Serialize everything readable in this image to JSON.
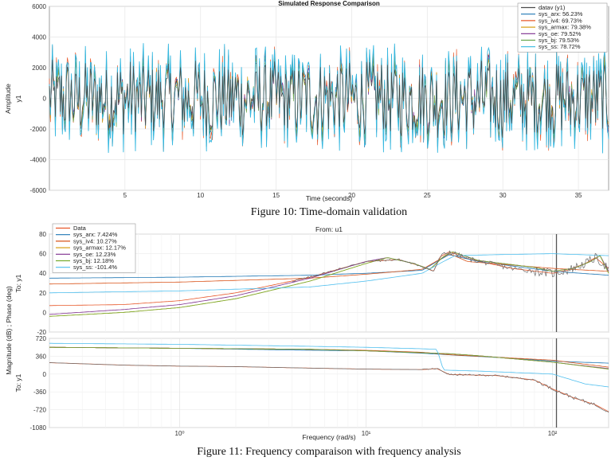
{
  "figure10": {
    "caption": "Figure 10: Time-domain validation",
    "chart_data": {
      "type": "line",
      "title": "Simulated Response Comparison",
      "xlabel": "Time (seconds)",
      "ylabel": "Amplitude",
      "ylabel_sub": "y1",
      "xlim": [
        0,
        37
      ],
      "ylim": [
        -6000,
        6000
      ],
      "xticks": [
        5,
        10,
        15,
        20,
        25,
        30,
        35
      ],
      "yticks": [
        -6000,
        -4000,
        -2000,
        0,
        2000,
        4000,
        6000
      ],
      "legend_position": "top-right",
      "series": [
        {
          "name": "datav (y1)",
          "color": "#4a4a4a"
        },
        {
          "name": "sys_arx: 56.23%",
          "color": "#1f77b4"
        },
        {
          "name": "sys_iv4: 69.73%",
          "color": "#e8582a"
        },
        {
          "name": "sys_armax: 79.38%",
          "color": "#d9a21b"
        },
        {
          "name": "sys_oe: 79.52%",
          "color": "#7b2d8e"
        },
        {
          "name": "sys_bj: 79.53%",
          "color": "#6aa84f"
        },
        {
          "name": "sys_ss: 78.72%",
          "color": "#35b8e0"
        }
      ]
    }
  },
  "figure11": {
    "caption": "Figure 11: Frequency comparaison with frequency analysis",
    "chart_data": {
      "type": "line",
      "subtitle": "From: u1",
      "xlabel": "Frequency  (rad/s)",
      "ylabel": "Magnitude (dB) ; Phase (deg)",
      "mag_side_label": "To: y1",
      "phase_side_label": "To: y1",
      "xscale": "log",
      "xlim": [
        0.2,
        200
      ],
      "xticks": [
        1,
        10,
        100
      ],
      "xtick_labels": [
        "10⁰",
        "10¹",
        "10²"
      ],
      "mag_ylim": [
        -20,
        80
      ],
      "mag_yticks": [
        -20,
        0,
        20,
        40,
        60,
        80
      ],
      "phase_ylim": [
        -1080,
        720
      ],
      "phase_yticks": [
        -1080,
        -720,
        -360,
        0,
        360,
        720
      ],
      "vertical_marker_x": 105,
      "legend_position": "top-left",
      "series": [
        {
          "name": "Data",
          "color": "#e8582a",
          "mag": [
            [
              0.2,
              7
            ],
            [
              0.5,
              8
            ],
            [
              1,
              12
            ],
            [
              2,
              20
            ],
            [
              5,
              36
            ],
            [
              10,
              52
            ],
            [
              15,
              54
            ],
            [
              20,
              47
            ],
            [
              23,
              42
            ],
            [
              25,
              57
            ],
            [
              28,
              62
            ],
            [
              35,
              55
            ],
            [
              60,
              45
            ],
            [
              100,
              40
            ],
            [
              120,
              43
            ],
            [
              150,
              50
            ],
            [
              170,
              56
            ],
            [
              200,
              45
            ]
          ],
          "phase": [
            [
              0.2,
              230
            ],
            [
              0.5,
              180
            ],
            [
              1,
              160
            ],
            [
              2,
              150
            ],
            [
              5,
              120
            ],
            [
              10,
              100
            ],
            [
              20,
              90
            ],
            [
              24,
              110
            ],
            [
              28,
              -10
            ],
            [
              50,
              -30
            ],
            [
              80,
              -120
            ],
            [
              100,
              -300
            ],
            [
              130,
              -480
            ],
            [
              170,
              -620
            ],
            [
              200,
              -760
            ]
          ]
        },
        {
          "name": "sys_arx: 7.424%",
          "color": "#1f77b4",
          "mag": [
            [
              0.2,
              35
            ],
            [
              1,
              36
            ],
            [
              5,
              38
            ],
            [
              10,
              40
            ],
            [
              20,
              43
            ],
            [
              25,
              54
            ],
            [
              28,
              59
            ],
            [
              40,
              52
            ],
            [
              100,
              42
            ],
            [
              200,
              38
            ]
          ],
          "phase": [
            [
              0.2,
              540
            ],
            [
              1,
              520
            ],
            [
              5,
              480
            ],
            [
              10,
              470
            ],
            [
              20,
              420
            ],
            [
              25,
              400
            ],
            [
              30,
              380
            ],
            [
              60,
              320
            ],
            [
              100,
              260
            ],
            [
              200,
              220
            ]
          ]
        },
        {
          "name": "sys_iv4: 10.27%",
          "color": "#d95319",
          "mag": [
            [
              0.2,
              29
            ],
            [
              1,
              31
            ],
            [
              5,
              35
            ],
            [
              10,
              39
            ],
            [
              20,
              44
            ],
            [
              28,
              60
            ],
            [
              35,
              52
            ],
            [
              100,
              45
            ],
            [
              200,
              42
            ]
          ],
          "phase": [
            [
              0.2,
              540
            ],
            [
              1,
              520
            ],
            [
              5,
              500
            ],
            [
              10,
              480
            ],
            [
              20,
              440
            ],
            [
              28,
              390
            ],
            [
              40,
              360
            ],
            [
              100,
              280
            ],
            [
              200,
              140
            ]
          ]
        },
        {
          "name": "sys_armax: 12.17%",
          "color": "#d9a21b",
          "mag": [
            [
              0.2,
              -4
            ],
            [
              0.5,
              0
            ],
            [
              1,
              5
            ],
            [
              2,
              14
            ],
            [
              5,
              32
            ],
            [
              10,
              50
            ],
            [
              13,
              56
            ],
            [
              18,
              50
            ],
            [
              22,
              44
            ],
            [
              26,
              57
            ],
            [
              29,
              62
            ],
            [
              40,
              53
            ],
            [
              80,
              46
            ],
            [
              100,
              42
            ],
            [
              130,
              45
            ],
            [
              160,
              52
            ],
            [
              180,
              58
            ],
            [
              200,
              40
            ]
          ],
          "phase": [
            [
              0.2,
              540
            ],
            [
              1,
              520
            ],
            [
              5,
              500
            ],
            [
              10,
              470
            ],
            [
              20,
              430
            ],
            [
              28,
              410
            ],
            [
              40,
              370
            ],
            [
              100,
              240
            ],
            [
              200,
              100
            ]
          ]
        },
        {
          "name": "sys_oe: 12.23%",
          "color": "#7e2f8e",
          "mag": [
            [
              0.2,
              -2
            ],
            [
              0.5,
              3
            ],
            [
              1,
              8
            ],
            [
              2,
              17
            ],
            [
              5,
              35
            ],
            [
              10,
              52
            ],
            [
              13,
              56
            ],
            [
              18,
              50
            ],
            [
              22,
              44
            ],
            [
              26,
              57
            ],
            [
              29,
              62
            ],
            [
              40,
              53
            ],
            [
              80,
              46
            ],
            [
              100,
              42
            ],
            [
              130,
              45
            ],
            [
              160,
              52
            ],
            [
              180,
              58
            ],
            [
              200,
              42
            ]
          ],
          "phase": [
            [
              0.2,
              540
            ],
            [
              1,
              520
            ],
            [
              5,
              500
            ],
            [
              10,
              470
            ],
            [
              20,
              430
            ],
            [
              28,
              410
            ],
            [
              40,
              370
            ],
            [
              100,
              240
            ],
            [
              200,
              110
            ]
          ]
        },
        {
          "name": "sys_bj: 12.18%",
          "color": "#77ac30",
          "mag": [
            [
              0.2,
              -4
            ],
            [
              0.5,
              0
            ],
            [
              1,
              5
            ],
            [
              2,
              14
            ],
            [
              5,
              32
            ],
            [
              10,
              50
            ],
            [
              13,
              56
            ],
            [
              18,
              50
            ],
            [
              22,
              44
            ],
            [
              26,
              57
            ],
            [
              29,
              62
            ],
            [
              40,
              53
            ],
            [
              80,
              46
            ],
            [
              100,
              42
            ],
            [
              130,
              45
            ],
            [
              160,
              52
            ],
            [
              180,
              58
            ],
            [
              200,
              40
            ]
          ],
          "phase": [
            [
              0.2,
              540
            ],
            [
              1,
              520
            ],
            [
              5,
              500
            ],
            [
              10,
              470
            ],
            [
              20,
              430
            ],
            [
              28,
              410
            ],
            [
              40,
              370
            ],
            [
              100,
              240
            ],
            [
              200,
              100
            ]
          ]
        },
        {
          "name": "sys_ss: -101.4%",
          "color": "#4dbeee",
          "mag": [
            [
              0.2,
              20
            ],
            [
              1,
              22
            ],
            [
              5,
              26
            ],
            [
              10,
              32
            ],
            [
              20,
              40
            ],
            [
              26,
              52
            ],
            [
              30,
              58
            ],
            [
              50,
              59
            ],
            [
              100,
              60
            ],
            [
              200,
              58
            ]
          ],
          "phase": [
            [
              0.2,
              620
            ],
            [
              1,
              600
            ],
            [
              5,
              560
            ],
            [
              10,
              540
            ],
            [
              20,
              510
            ],
            [
              24,
              500
            ],
            [
              26,
              80
            ],
            [
              40,
              60
            ],
            [
              100,
              0
            ],
            [
              150,
              -200
            ],
            [
              200,
              -260
            ]
          ]
        }
      ]
    }
  }
}
